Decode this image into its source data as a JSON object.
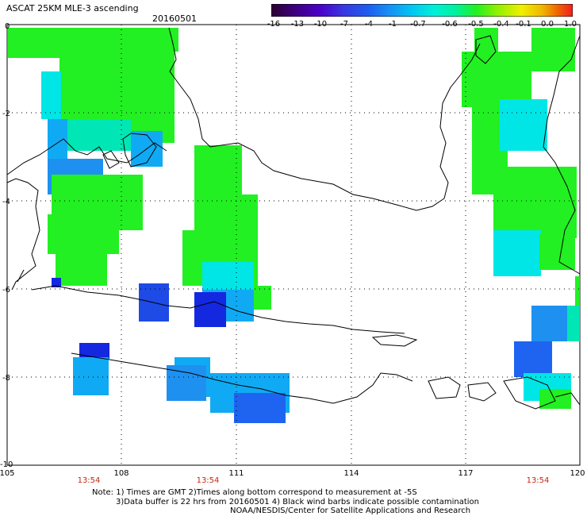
{
  "header": {
    "title": "ASCAT 25KM MLE-3 ascending",
    "date": "20160501"
  },
  "colorbar": {
    "labels": [
      "-16",
      "-13",
      "-10",
      "-7",
      "-4",
      "-1",
      "-0.7",
      "-0.6",
      "-0.5",
      "-0.4",
      "-0.1",
      "0.0",
      "1.0"
    ],
    "colors": [
      "#2a0030",
      "#3d0080",
      "#4b00c8",
      "#3838e0",
      "#1f5cf0",
      "#1496f5",
      "#00c8f0",
      "#00f0d8",
      "#00f0a0",
      "#22f022",
      "#90f000",
      "#f0f000",
      "#f0b400",
      "#f06400",
      "#f01e1e"
    ]
  },
  "axes": {
    "lon_labels": [
      "105",
      "108",
      "111",
      "114",
      "117",
      "120"
    ],
    "lat_labels": [
      "0",
      "-2",
      "-4",
      "-6",
      "-8",
      "-10"
    ]
  },
  "times": [
    "13:54",
    "13:54",
    "13:54"
  ],
  "notes": [
    "Note: 1) Times are GMT 2)Times along bottom correspond to measurement at -5S",
    "3)Data buffer is 22 hrs from 20160501 4) Black wind barbs indicate possible contamination",
    "NOAA/NESDIS/Center for Satellite Applications and Research"
  ],
  "legend_colors": {
    "green": "#22f022",
    "cyan": "#00f0f0",
    "teal": "#00e6b4",
    "lightblue": "#10aaf4",
    "blue": "#1e64f0",
    "darkblue": "#1428e0"
  }
}
